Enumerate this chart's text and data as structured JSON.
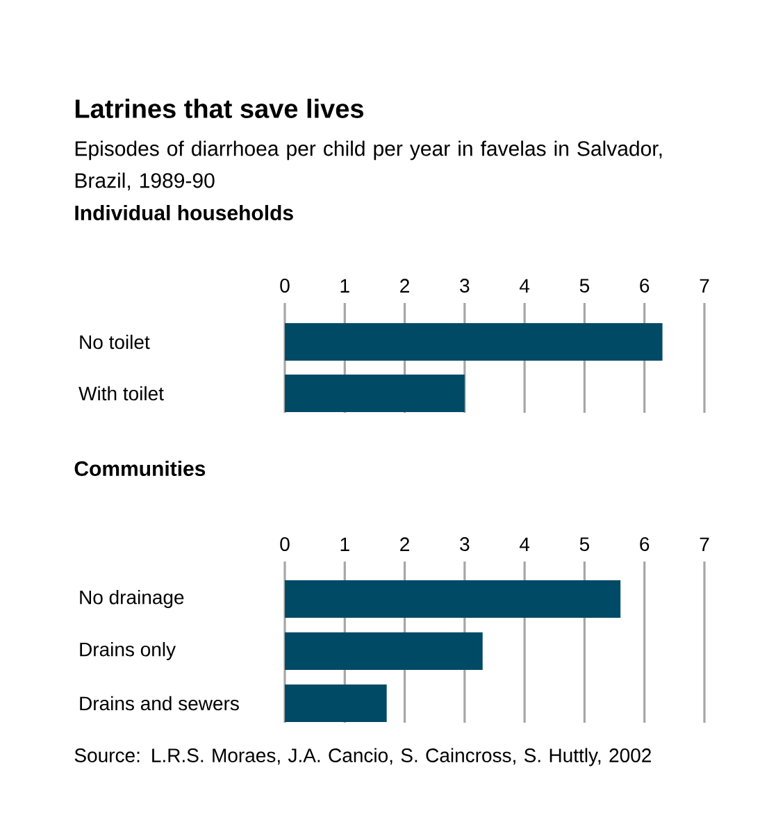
{
  "chart_data": [
    {
      "type": "bar",
      "orientation": "horizontal",
      "title": "Latrines that save lives",
      "subtitle": "Episodes of diarrhoea per child per year in favelas in Salvador, Brazil, 1989-90",
      "annotations": [
        "Individual households"
      ],
      "categories": [
        "No toilet",
        "With toilet"
      ],
      "values": [
        6.3,
        3.0
      ],
      "color": "#004a66",
      "xlim": [
        0,
        7
      ],
      "xticks": [
        0,
        1,
        2,
        3,
        4,
        5,
        6,
        7
      ],
      "grid": "x"
    },
    {
      "type": "bar",
      "orientation": "horizontal",
      "title": "Communities",
      "annotations": [
        "Source: L.R.S. Moraes, J.A. Cancio, S. Caincross, S. Huttly, 2002"
      ],
      "categories": [
        "No drainage",
        "Drains only",
        "Drains and sewers"
      ],
      "values": [
        5.6,
        3.3,
        1.7
      ],
      "color": "#004a66",
      "xlim": [
        0,
        7
      ],
      "xticks": [
        0,
        1,
        2,
        3,
        4,
        5,
        6,
        7
      ],
      "grid": "x"
    }
  ]
}
